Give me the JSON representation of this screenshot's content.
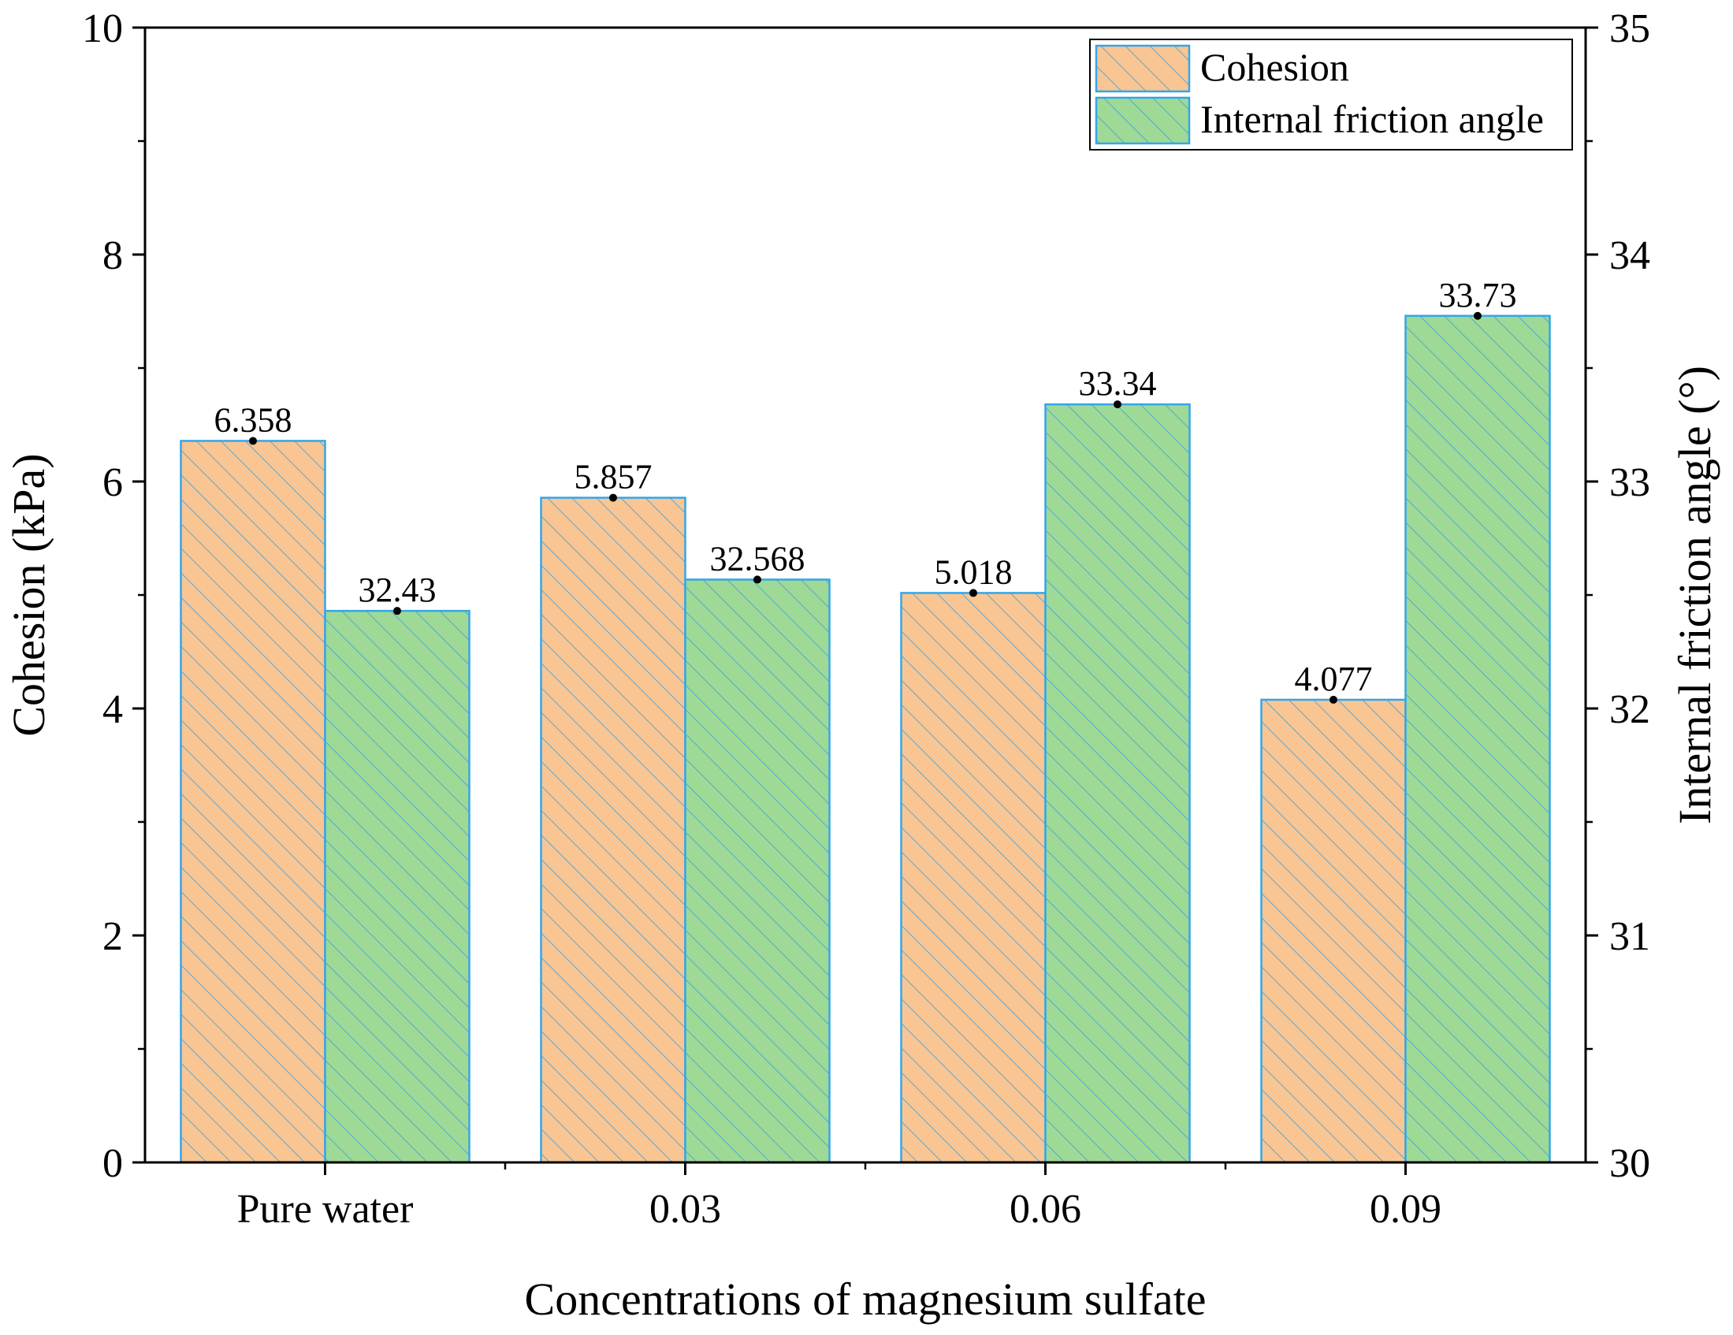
{
  "chart_data": {
    "type": "bar",
    "title": "",
    "xlabel": "Concentrations of magnesium sulfate",
    "ylabel": "Cohesion (kPa)",
    "y2label": "Internal friction angle (°)",
    "categories": [
      "Pure water",
      "0.03",
      "0.06",
      "0.09"
    ],
    "ylim": [
      0,
      10
    ],
    "y2lim": [
      30,
      35
    ],
    "yticks": [
      "0",
      "2",
      "4",
      "6",
      "8",
      "10"
    ],
    "y2ticks": [
      "30",
      "31",
      "32",
      "33",
      "34",
      "35"
    ],
    "legend_position": "top-right",
    "series": [
      {
        "name": "Cohesion",
        "axis": "left",
        "values": [
          6.358,
          5.857,
          5.018,
          4.077
        ],
        "labels": [
          "6.358",
          "5.857",
          "5.018",
          "4.077"
        ],
        "fill": "#f9c592",
        "hatch": "#3aa0dc"
      },
      {
        "name": "Internal friction angle",
        "axis": "right",
        "values": [
          32.43,
          32.568,
          33.34,
          33.73
        ],
        "labels": [
          "32.43",
          "32.568",
          "33.34",
          "33.73"
        ],
        "fill": "#9fd996",
        "hatch": "#3aa0dc"
      }
    ],
    "colors": {
      "border": "#33a6e8",
      "axis": "#000000"
    }
  }
}
